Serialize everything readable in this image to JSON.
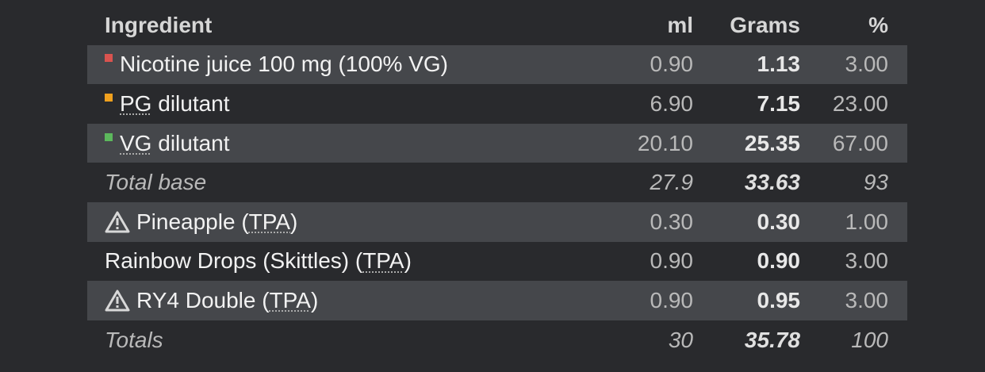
{
  "colors": {
    "background": "#292a2d",
    "row_alt": "#45474b",
    "nicotine": "#d9534f",
    "pg": "#f0a01e",
    "vg": "#5cb85c"
  },
  "header": {
    "ingredient": "Ingredient",
    "ml": "ml",
    "grams": "Grams",
    "percent": "%"
  },
  "rows": [
    {
      "name": "Nicotine juice 100 mg (100% VG)",
      "ml": "0.90",
      "grams": "1.13",
      "percent": "3.00",
      "swatch": "nicotine"
    },
    {
      "name_abbr": "PG",
      "name_rest": " dilutant",
      "ml": "6.90",
      "grams": "7.15",
      "percent": "23.00",
      "swatch": "pg"
    },
    {
      "name_abbr": "VG",
      "name_rest": " dilutant",
      "ml": "20.10",
      "grams": "25.35",
      "percent": "67.00",
      "swatch": "vg"
    }
  ],
  "total_base": {
    "label": "Total base",
    "ml": "27.9",
    "grams": "33.63",
    "percent": "93"
  },
  "flavors": [
    {
      "name": "Pineapple (",
      "abbr": "TPA",
      "close": ")",
      "ml": "0.30",
      "grams": "0.30",
      "percent": "1.00",
      "icon": "warning-icon"
    },
    {
      "name": "Rainbow Drops (Skittles) (",
      "abbr": "TPA",
      "close": ")",
      "ml": "0.90",
      "grams": "0.90",
      "percent": "3.00",
      "icon": ""
    },
    {
      "name": "RY4 Double (",
      "abbr": "TPA",
      "close": ")",
      "ml": "0.90",
      "grams": "0.95",
      "percent": "3.00",
      "icon": "warning-icon"
    }
  ],
  "totals": {
    "label": "Totals",
    "ml": "30",
    "grams": "35.78",
    "percent": "100"
  }
}
